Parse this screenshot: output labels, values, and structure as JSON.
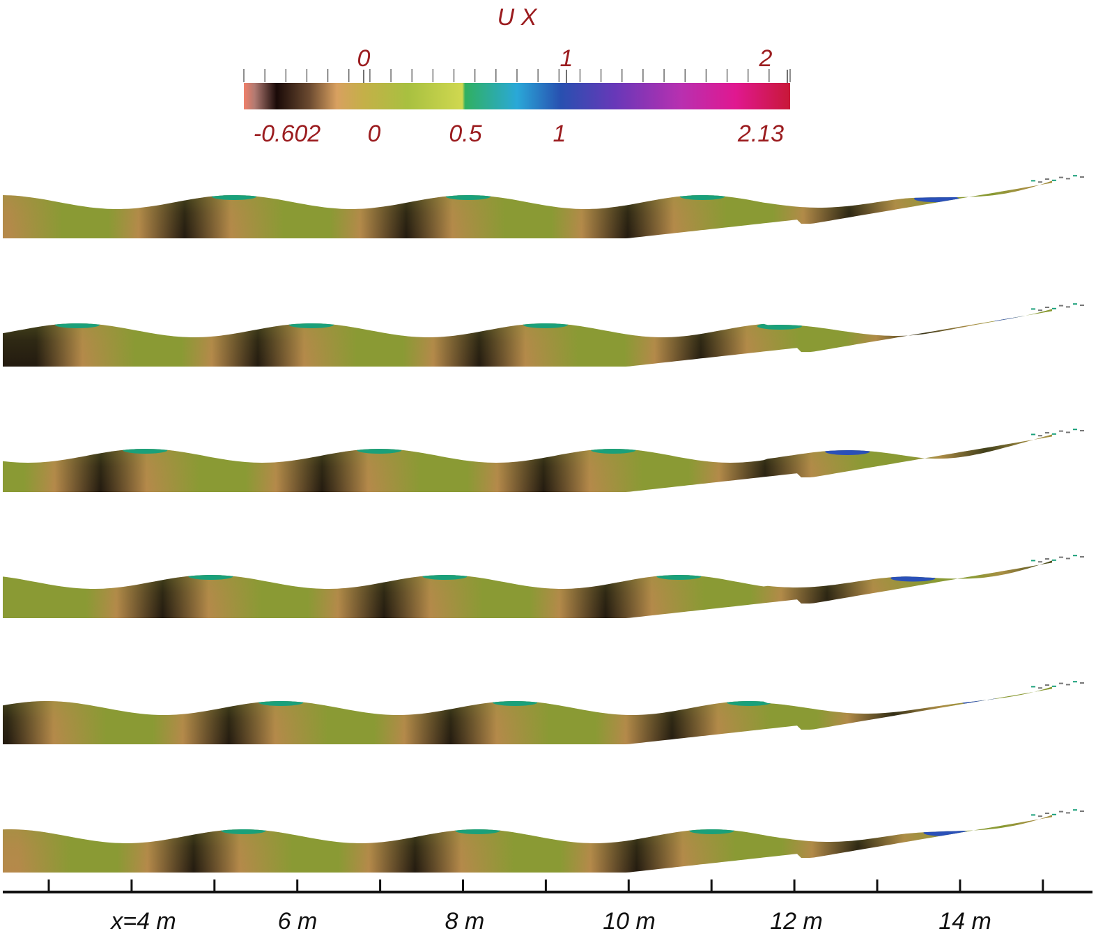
{
  "colorbar": {
    "title": "U X",
    "top_ticks": [
      "0",
      "1",
      "2"
    ],
    "bottom_ticks": [
      "-0.602",
      "0",
      "0.5",
      "1",
      "2.13"
    ],
    "label_color": "#9b1c1f",
    "gradient_colors": [
      "#f0806a",
      "#b07a72",
      "#1a0a08",
      "#6b4a30",
      "#d8a060",
      "#c4b048",
      "#a8c040",
      "#d0d850",
      "#30b060",
      "#2aa8d8",
      "#2850b0",
      "#6838b8",
      "#b830b0",
      "#e01890",
      "#c81838"
    ]
  },
  "field_colors": {
    "green": "#8a9a34",
    "tan": "#b8884c",
    "dark": "#1e140e",
    "crest": "#1aa07a",
    "crest_blue": "#2a50b8"
  },
  "snapshots": [
    {
      "id": 1
    },
    {
      "id": 2
    },
    {
      "id": 3
    },
    {
      "id": 4
    },
    {
      "id": 5
    },
    {
      "id": 6
    }
  ],
  "axis": {
    "labels": [
      "x=4 m",
      "6 m",
      "8 m",
      "10 m",
      "12 m",
      "14 m"
    ]
  }
}
